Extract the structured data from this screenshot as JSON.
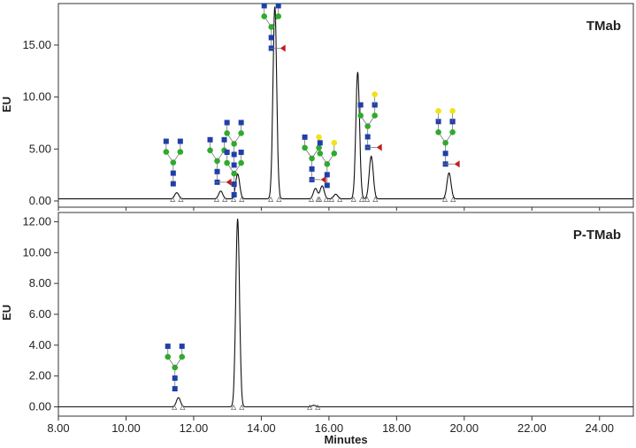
{
  "chart_data": [
    {
      "type": "line",
      "title": "TMab",
      "ylabel": "EU",
      "xlabel": "",
      "xlim": [
        8.0,
        25.0
      ],
      "ylim": [
        -0.6,
        19.0
      ],
      "yticks": [
        "0.00",
        "5.00",
        "10.00",
        "15.00"
      ],
      "ytick_values": [
        0,
        5,
        10,
        15
      ],
      "baseline": 0.2,
      "peaks": [
        {
          "x": 11.5,
          "y": 0.6
        },
        {
          "x": 12.8,
          "y": 0.75
        },
        {
          "x": 13.3,
          "y": 2.4
        },
        {
          "x": 14.4,
          "y": 18.5
        },
        {
          "x": 15.6,
          "y": 1.0
        },
        {
          "x": 15.8,
          "y": 1.25
        },
        {
          "x": 16.2,
          "y": 0.45
        },
        {
          "x": 16.85,
          "y": 12.2
        },
        {
          "x": 17.25,
          "y": 4.1
        },
        {
          "x": 19.55,
          "y": 2.5
        }
      ],
      "glycans": [
        {
          "x": 11.5,
          "type": "G0"
        },
        {
          "x": 12.8,
          "type": "G0F-bisect"
        },
        {
          "x": 13.3,
          "type": "Man5"
        },
        {
          "x": 14.4,
          "type": "G0F-bisect"
        },
        {
          "x": 15.6,
          "type": "G1F"
        },
        {
          "x": 16.05,
          "type": "G1"
        },
        {
          "x": 17.25,
          "type": "G1F-big"
        },
        {
          "x": 19.55,
          "type": "G2F"
        }
      ]
    },
    {
      "type": "line",
      "title": "P-TMab",
      "ylabel": "EU",
      "xlabel": "Minutes",
      "xlim": [
        8.0,
        25.0
      ],
      "ylim": [
        -0.6,
        12.6
      ],
      "yticks": [
        "0.00",
        "2.00",
        "4.00",
        "6.00",
        "8.00",
        "10.00",
        "12.00"
      ],
      "ytick_values": [
        0,
        2,
        4,
        6,
        8,
        10,
        12
      ],
      "xticks": [
        "8.00",
        "10.00",
        "12.00",
        "14.00",
        "16.00",
        "18.00",
        "20.00",
        "22.00",
        "24.00"
      ],
      "xtick_values": [
        8,
        10,
        12,
        14,
        16,
        18,
        20,
        22,
        24
      ],
      "baseline": 0.0,
      "peaks": [
        {
          "x": 11.55,
          "y": 0.6
        },
        {
          "x": 13.3,
          "y": 12.2
        },
        {
          "x": 15.55,
          "y": 0.1
        }
      ],
      "glycans": [
        {
          "x": 11.55,
          "type": "G0"
        },
        {
          "x": 13.3,
          "type": "Man5"
        }
      ]
    }
  ],
  "colors": {
    "glcnac": "#1f3fa8",
    "mannose": "#27b024",
    "galactose": "#f2e21a",
    "fucose": "#c11c1c",
    "trace": "#111111"
  }
}
